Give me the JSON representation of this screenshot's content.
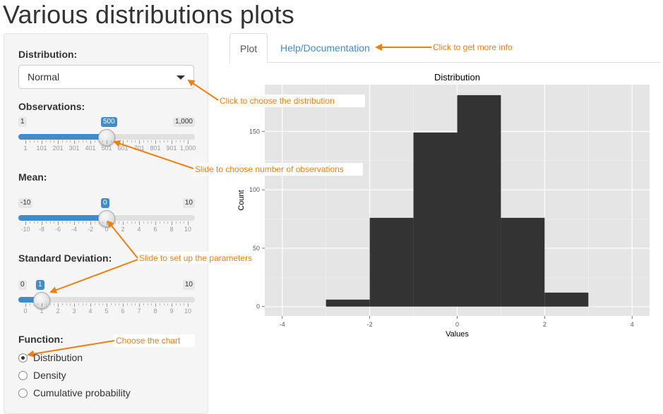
{
  "title": "Various distributions plots",
  "sidebar": {
    "distribution_label": "Distribution:",
    "distribution_value": "Normal",
    "observations": {
      "label": "Observations:",
      "min": "1",
      "max": "1,000",
      "value": "500",
      "fraction": 0.5,
      "ticks": [
        "1",
        "101",
        "201",
        "301",
        "401",
        "501",
        "601",
        "701",
        "801",
        "901",
        "1,000"
      ]
    },
    "mean": {
      "label": "Mean:",
      "min": "-10",
      "max": "10",
      "value": "0",
      "fraction": 0.5,
      "ticks": [
        "-10",
        "-8",
        "-6",
        "-4",
        "-2",
        "0",
        "2",
        "4",
        "6",
        "8",
        "10"
      ]
    },
    "sd": {
      "label": "Standard Deviation:",
      "min": "0",
      "max": "10",
      "value": "1",
      "fraction": 0.1,
      "ticks": [
        "0",
        "1",
        "2",
        "3",
        "4",
        "5",
        "6",
        "7",
        "8",
        "9",
        "10"
      ]
    },
    "function_label": "Function:",
    "function_options": [
      "Distribution",
      "Density",
      "Cumulative probability"
    ],
    "function_selected": 0
  },
  "tabs": {
    "plot": "Plot",
    "help": "Help/Documentation"
  },
  "annotations": {
    "more_info": "Click to get more info",
    "choose_distribution": "Click to choose the distribution",
    "num_observations": "Slide to choose number of observations",
    "parameters": "Slide to set up the parameters",
    "choose_chart": "Choose the chart"
  },
  "colors": {
    "accent": "#428bca",
    "annotation": "#f07f10",
    "panel_bg": "#e5e5e5",
    "bar": "#333333"
  },
  "chart_data": {
    "type": "bar",
    "title": "Distribution",
    "xlabel": "Values",
    "ylabel": "Count",
    "bins": [
      [
        -3,
        -2
      ],
      [
        -2,
        -1
      ],
      [
        -1,
        0
      ],
      [
        0,
        1
      ],
      [
        1,
        2
      ],
      [
        2,
        3
      ]
    ],
    "values": [
      6,
      76,
      149,
      181,
      76,
      12
    ],
    "xlim": [
      -4.4,
      4.4
    ],
    "ylim": [
      -8,
      190
    ],
    "xticks": [
      -4,
      -2,
      0,
      2,
      4
    ],
    "yticks": [
      0,
      50,
      100,
      150
    ],
    "grid": true
  }
}
